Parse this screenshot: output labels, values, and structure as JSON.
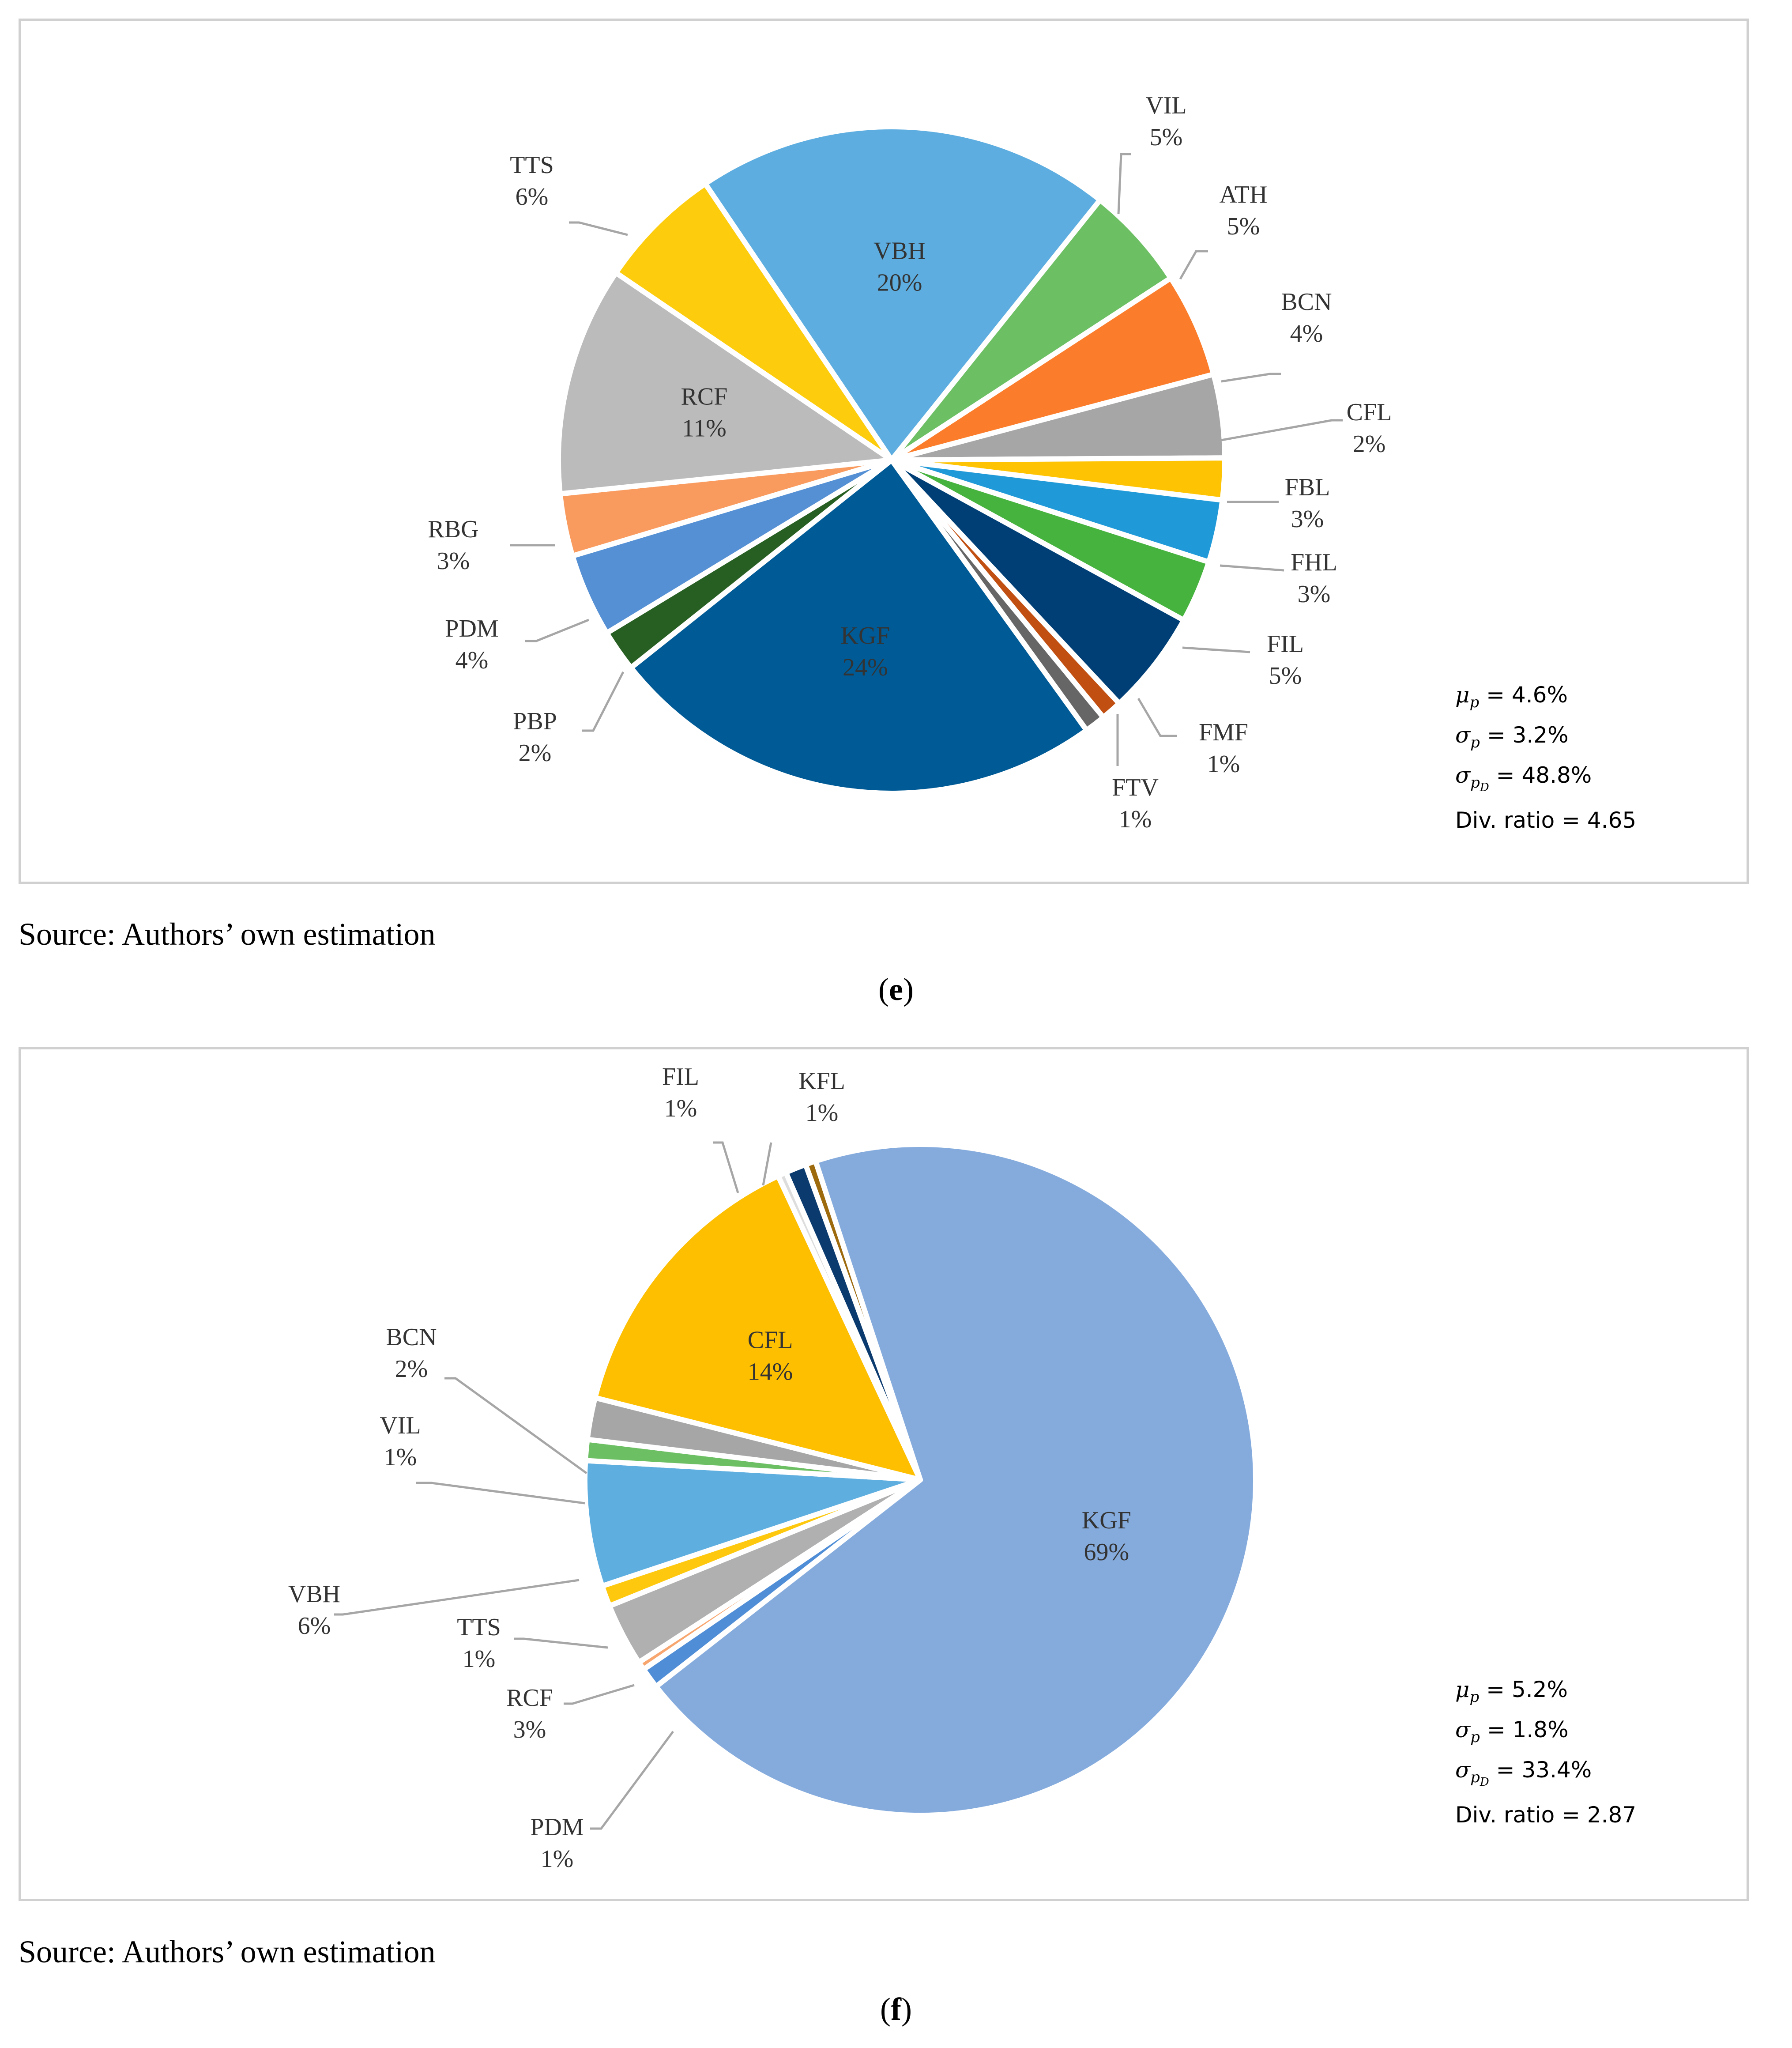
{
  "chart_data": [
    {
      "type": "pie",
      "panel": "e",
      "start_angle_deg": 124,
      "slices": [
        {
          "label": "VBH",
          "value": 20,
          "pct": "20%",
          "color": "#5dade0"
        },
        {
          "label": "VIL",
          "value": 5,
          "pct": "5%",
          "color": "#6cbf63"
        },
        {
          "label": "ATH",
          "value": 5,
          "pct": "5%",
          "color": "#fb7d2b"
        },
        {
          "label": "BCN",
          "value": 4,
          "pct": "4%",
          "color": "#a6a6a6"
        },
        {
          "label": "CFL",
          "value": 2,
          "pct": "2%",
          "color": "#fec302"
        },
        {
          "label": "FBL",
          "value": 3,
          "pct": "3%",
          "color": "#1f99d8"
        },
        {
          "label": "FHL",
          "value": 3,
          "pct": "3%",
          "color": "#47b33f"
        },
        {
          "label": "FIL",
          "value": 5,
          "pct": "5%",
          "color": "#003f76"
        },
        {
          "label": "FMF",
          "value": 1,
          "pct": "1%",
          "color": "#c14f11"
        },
        {
          "label": "FTV",
          "value": 1,
          "pct": "1%",
          "color": "#666666"
        },
        {
          "label": "KGF",
          "value": 24,
          "pct": "24%",
          "color": "#005a95"
        },
        {
          "label": "PBP",
          "value": 2,
          "pct": "2%",
          "color": "#275f22"
        },
        {
          "label": "PDM",
          "value": 4,
          "pct": "4%",
          "color": "#5590d4"
        },
        {
          "label": "RBG",
          "value": 3,
          "pct": "3%",
          "color": "#f99a5e"
        },
        {
          "label": "RCF",
          "value": 11,
          "pct": "11%",
          "color": "#bbbbbb"
        },
        {
          "label": "TTS",
          "value": 6,
          "pct": "6%",
          "color": "#fdcc0c"
        }
      ],
      "stats": {
        "mu": "= 4.6%",
        "sigma": "= 3.2%",
        "sigma_d": "= 48.8%",
        "div_ratio": "Div. ratio = 4.65"
      }
    },
    {
      "type": "pie",
      "panel": "f",
      "start_angle_deg": 110,
      "slices": [
        {
          "label": "KFL",
          "value": 0.5,
          "pct": "1%",
          "color": "#9d6a0e"
        },
        {
          "label": "KGF",
          "value": 69,
          "pct": "69%",
          "color": "#85abdd"
        },
        {
          "label": "PDM",
          "value": 1,
          "pct": "1%",
          "color": "#4f8dd6"
        },
        {
          "label": "",
          "value": 0.4,
          "pct": "",
          "color": "#f8a66f"
        },
        {
          "label": "RCF",
          "value": 3,
          "pct": "3%",
          "color": "#b0b0b0"
        },
        {
          "label": "TTS",
          "value": 1,
          "pct": "1%",
          "color": "#fdc80e"
        },
        {
          "label": "VBH",
          "value": 6,
          "pct": "6%",
          "color": "#5eaee0"
        },
        {
          "label": "VIL",
          "value": 1,
          "pct": "1%",
          "color": "#6cbf63"
        },
        {
          "label": "BCN",
          "value": 2,
          "pct": "2%",
          "color": "#a6a6a6"
        },
        {
          "label": "CFL",
          "value": 14,
          "pct": "14%",
          "color": "#fdbf00"
        },
        {
          "label": "",
          "value": 0.4,
          "pct": "",
          "color": "#dddddd"
        },
        {
          "label": "FIL",
          "value": 1,
          "pct": "1%",
          "color": "#0a3a6e"
        }
      ],
      "stats": {
        "mu": "= 5.2%",
        "sigma": "= 1.8%",
        "sigma_d": "= 33.4%",
        "div_ratio": "Div. ratio = 2.87"
      }
    }
  ],
  "source_text": "Source: Authors’ own estimation",
  "captions": {
    "e": "e",
    "f": "f"
  },
  "stat_symbols": {
    "mu": "μ",
    "sigma": "σ",
    "sub_p": "p",
    "sub_d": "D"
  }
}
